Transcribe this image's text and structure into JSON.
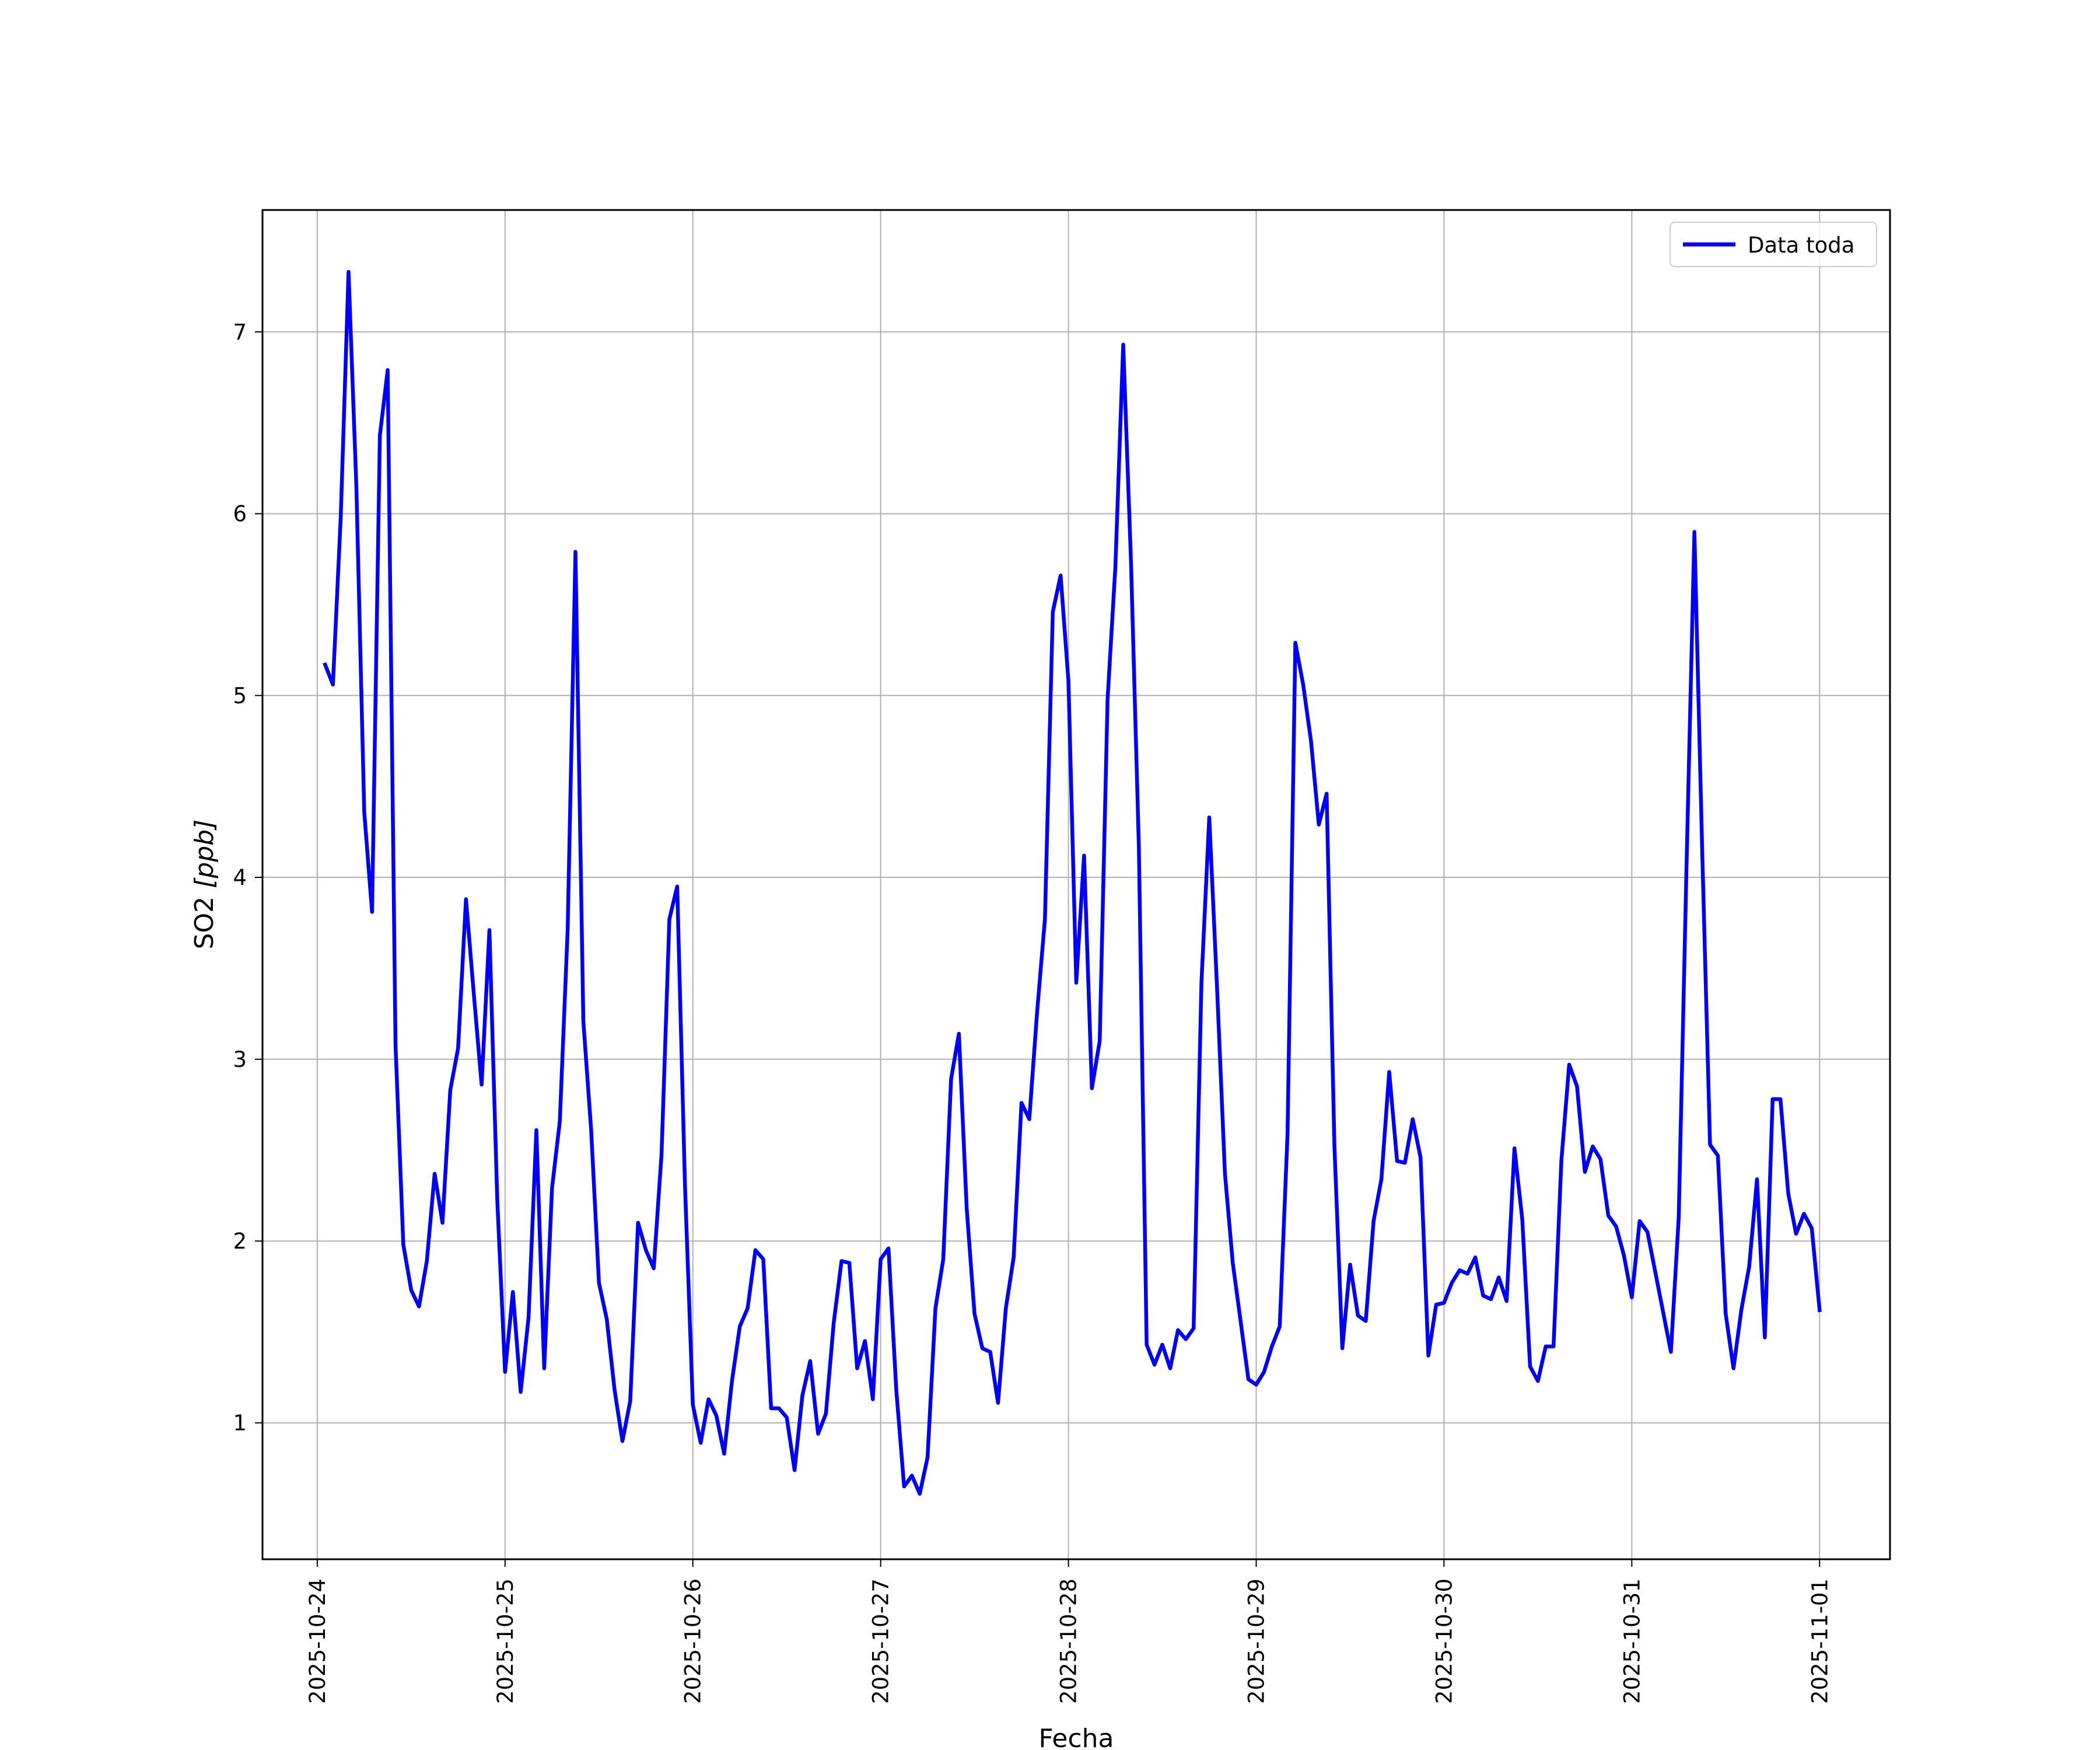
{
  "chart_data": {
    "type": "line",
    "xlabel": "Fecha",
    "ylabel_main": "SO2 ",
    "ylabel_unit": "[ppb]",
    "x_ticks": [
      "2025-10-24",
      "2025-10-25",
      "2025-10-26",
      "2025-10-27",
      "2025-10-28",
      "2025-10-29",
      "2025-10-30",
      "2025-10-31",
      "2025-11-01"
    ],
    "y_ticks": [
      1,
      2,
      3,
      4,
      5,
      6,
      7
    ],
    "xlim": [
      "2025-10-23T17:00",
      "2025-11-01T09:00"
    ],
    "ylim": [
      0.25,
      7.67
    ],
    "grid": true,
    "legend_position": "top-right",
    "series": [
      {
        "name": "Data toda",
        "color": "#0000ff",
        "points": [
          [
            "2025-10-24T01:00",
            5.17
          ],
          [
            "2025-10-24T02:00",
            5.06
          ],
          [
            "2025-10-24T03:00",
            5.98
          ],
          [
            "2025-10-24T04:00",
            7.33
          ],
          [
            "2025-10-24T05:00",
            6.14
          ],
          [
            "2025-10-24T06:00",
            4.36
          ],
          [
            "2025-10-24T07:00",
            3.81
          ],
          [
            "2025-10-24T08:00",
            6.43
          ],
          [
            "2025-10-24T09:00",
            6.79
          ],
          [
            "2025-10-24T10:00",
            3.08
          ],
          [
            "2025-10-24T11:00",
            1.98
          ],
          [
            "2025-10-24T12:00",
            1.73
          ],
          [
            "2025-10-24T13:00",
            1.64
          ],
          [
            "2025-10-24T14:00",
            1.89
          ],
          [
            "2025-10-24T15:00",
            2.37
          ],
          [
            "2025-10-24T16:00",
            2.1
          ],
          [
            "2025-10-24T17:00",
            2.83
          ],
          [
            "2025-10-24T18:00",
            3.06
          ],
          [
            "2025-10-24T19:00",
            3.88
          ],
          [
            "2025-10-24T20:00",
            3.36
          ],
          [
            "2025-10-24T21:00",
            2.86
          ],
          [
            "2025-10-24T22:00",
            3.71
          ],
          [
            "2025-10-24T23:00",
            2.23
          ],
          [
            "2025-10-25T00:00",
            1.28
          ],
          [
            "2025-10-25T01:00",
            1.72
          ],
          [
            "2025-10-25T02:00",
            1.17
          ],
          [
            "2025-10-25T03:00",
            1.58
          ],
          [
            "2025-10-25T04:00",
            2.61
          ],
          [
            "2025-10-25T05:00",
            1.3
          ],
          [
            "2025-10-25T06:00",
            2.29
          ],
          [
            "2025-10-25T07:00",
            2.66
          ],
          [
            "2025-10-25T08:00",
            3.71
          ],
          [
            "2025-10-25T09:00",
            5.79
          ],
          [
            "2025-10-25T10:00",
            3.21
          ],
          [
            "2025-10-25T11:00",
            2.61
          ],
          [
            "2025-10-25T12:00",
            1.77
          ],
          [
            "2025-10-25T13:00",
            1.57
          ],
          [
            "2025-10-25T14:00",
            1.18
          ],
          [
            "2025-10-25T15:00",
            0.9
          ],
          [
            "2025-10-25T16:00",
            1.12
          ],
          [
            "2025-10-25T17:00",
            2.1
          ],
          [
            "2025-10-25T18:00",
            1.95
          ],
          [
            "2025-10-25T19:00",
            1.85
          ],
          [
            "2025-10-25T20:00",
            2.48
          ],
          [
            "2025-10-25T21:00",
            3.77
          ],
          [
            "2025-10-25T22:00",
            3.95
          ],
          [
            "2025-10-25T23:00",
            2.3
          ],
          [
            "2025-10-26T00:00",
            1.1
          ],
          [
            "2025-10-26T01:00",
            0.89
          ],
          [
            "2025-10-26T02:00",
            1.13
          ],
          [
            "2025-10-26T03:00",
            1.04
          ],
          [
            "2025-10-26T04:00",
            0.83
          ],
          [
            "2025-10-26T05:00",
            1.23
          ],
          [
            "2025-10-26T06:00",
            1.53
          ],
          [
            "2025-10-26T07:00",
            1.63
          ],
          [
            "2025-10-26T08:00",
            1.95
          ],
          [
            "2025-10-26T09:00",
            1.9
          ],
          [
            "2025-10-26T10:00",
            1.08
          ],
          [
            "2025-10-26T11:00",
            1.08
          ],
          [
            "2025-10-26T12:00",
            1.03
          ],
          [
            "2025-10-26T13:00",
            0.74
          ],
          [
            "2025-10-26T14:00",
            1.15
          ],
          [
            "2025-10-26T15:00",
            1.34
          ],
          [
            "2025-10-26T16:00",
            0.94
          ],
          [
            "2025-10-26T17:00",
            1.05
          ],
          [
            "2025-10-26T18:00",
            1.55
          ],
          [
            "2025-10-26T19:00",
            1.89
          ],
          [
            "2025-10-26T20:00",
            1.88
          ],
          [
            "2025-10-26T21:00",
            1.3
          ],
          [
            "2025-10-26T22:00",
            1.45
          ],
          [
            "2025-10-26T23:00",
            1.13
          ],
          [
            "2025-10-27T00:00",
            1.9
          ],
          [
            "2025-10-27T01:00",
            1.96
          ],
          [
            "2025-10-27T02:00",
            1.18
          ],
          [
            "2025-10-27T03:00",
            0.65
          ],
          [
            "2025-10-27T04:00",
            0.71
          ],
          [
            "2025-10-27T05:00",
            0.61
          ],
          [
            "2025-10-27T06:00",
            0.81
          ],
          [
            "2025-10-27T07:00",
            1.63
          ],
          [
            "2025-10-27T08:00",
            1.9
          ],
          [
            "2025-10-27T09:00",
            2.89
          ],
          [
            "2025-10-27T10:00",
            3.14
          ],
          [
            "2025-10-27T11:00",
            2.18
          ],
          [
            "2025-10-27T12:00",
            1.6
          ],
          [
            "2025-10-27T13:00",
            1.41
          ],
          [
            "2025-10-27T14:00",
            1.39
          ],
          [
            "2025-10-27T15:00",
            1.11
          ],
          [
            "2025-10-27T16:00",
            1.63
          ],
          [
            "2025-10-27T17:00",
            1.91
          ],
          [
            "2025-10-27T18:00",
            2.76
          ],
          [
            "2025-10-27T19:00",
            2.67
          ],
          [
            "2025-10-27T20:00",
            3.26
          ],
          [
            "2025-10-27T21:00",
            3.77
          ],
          [
            "2025-10-27T22:00",
            5.46
          ],
          [
            "2025-10-27T23:00",
            5.66
          ],
          [
            "2025-10-28T00:00",
            5.08
          ],
          [
            "2025-10-28T01:00",
            3.42
          ],
          [
            "2025-10-28T02:00",
            4.12
          ],
          [
            "2025-10-28T03:00",
            2.84
          ],
          [
            "2025-10-28T04:00",
            3.1
          ],
          [
            "2025-10-28T05:00",
            4.98
          ],
          [
            "2025-10-28T06:00",
            5.71
          ],
          [
            "2025-10-28T07:00",
            6.93
          ],
          [
            "2025-10-28T08:00",
            5.73
          ],
          [
            "2025-10-28T09:00",
            4.17
          ],
          [
            "2025-10-28T10:00",
            1.43
          ],
          [
            "2025-10-28T11:00",
            1.32
          ],
          [
            "2025-10-28T12:00",
            1.43
          ],
          [
            "2025-10-28T13:00",
            1.3
          ],
          [
            "2025-10-28T14:00",
            1.51
          ],
          [
            "2025-10-28T15:00",
            1.46
          ],
          [
            "2025-10-28T16:00",
            1.52
          ],
          [
            "2025-10-28T17:00",
            3.42
          ],
          [
            "2025-10-28T18:00",
            4.33
          ],
          [
            "2025-10-28T19:00",
            3.39
          ],
          [
            "2025-10-28T20:00",
            2.37
          ],
          [
            "2025-10-28T21:00",
            1.88
          ],
          [
            "2025-10-28T22:00",
            1.56
          ],
          [
            "2025-10-28T23:00",
            1.24
          ],
          [
            "2025-10-29T00:00",
            1.21
          ],
          [
            "2025-10-29T01:00",
            1.28
          ],
          [
            "2025-10-29T02:00",
            1.42
          ],
          [
            "2025-10-29T03:00",
            1.53
          ],
          [
            "2025-10-29T04:00",
            2.59
          ],
          [
            "2025-10-29T05:00",
            5.29
          ],
          [
            "2025-10-29T06:00",
            5.06
          ],
          [
            "2025-10-29T07:00",
            4.75
          ],
          [
            "2025-10-29T08:00",
            4.29
          ],
          [
            "2025-10-29T09:00",
            4.46
          ],
          [
            "2025-10-29T10:00",
            2.52
          ],
          [
            "2025-10-29T11:00",
            1.41
          ],
          [
            "2025-10-29T12:00",
            1.87
          ],
          [
            "2025-10-29T13:00",
            1.59
          ],
          [
            "2025-10-29T14:00",
            1.56
          ],
          [
            "2025-10-29T15:00",
            2.11
          ],
          [
            "2025-10-29T16:00",
            2.34
          ],
          [
            "2025-10-29T17:00",
            2.93
          ],
          [
            "2025-10-29T18:00",
            2.44
          ],
          [
            "2025-10-29T19:00",
            2.43
          ],
          [
            "2025-10-29T20:00",
            2.67
          ],
          [
            "2025-10-29T21:00",
            2.46
          ],
          [
            "2025-10-29T22:00",
            1.37
          ],
          [
            "2025-10-29T23:00",
            1.65
          ],
          [
            "2025-10-30T00:00",
            1.66
          ],
          [
            "2025-10-30T01:00",
            1.77
          ],
          [
            "2025-10-30T02:00",
            1.84
          ],
          [
            "2025-10-30T03:00",
            1.82
          ],
          [
            "2025-10-30T04:00",
            1.91
          ],
          [
            "2025-10-30T05:00",
            1.7
          ],
          [
            "2025-10-30T06:00",
            1.68
          ],
          [
            "2025-10-30T07:00",
            1.8
          ],
          [
            "2025-10-30T08:00",
            1.67
          ],
          [
            "2025-10-30T09:00",
            2.51
          ],
          [
            "2025-10-30T10:00",
            2.12
          ],
          [
            "2025-10-30T11:00",
            1.31
          ],
          [
            "2025-10-30T12:00",
            1.23
          ],
          [
            "2025-10-30T13:00",
            1.42
          ],
          [
            "2025-10-30T14:00",
            1.42
          ],
          [
            "2025-10-30T15:00",
            2.44
          ],
          [
            "2025-10-30T16:00",
            2.97
          ],
          [
            "2025-10-30T17:00",
            2.85
          ],
          [
            "2025-10-30T18:00",
            2.38
          ],
          [
            "2025-10-30T19:00",
            2.52
          ],
          [
            "2025-10-30T20:00",
            2.45
          ],
          [
            "2025-10-30T21:00",
            2.14
          ],
          [
            "2025-10-30T22:00",
            2.08
          ],
          [
            "2025-10-30T23:00",
            1.92
          ],
          [
            "2025-10-31T00:00",
            1.69
          ],
          [
            "2025-10-31T01:00",
            2.11
          ],
          [
            "2025-10-31T02:00",
            2.05
          ],
          [
            "2025-10-31T05:00",
            1.39
          ],
          [
            "2025-10-31T06:00",
            2.13
          ],
          [
            "2025-10-31T07:00",
            4.08
          ],
          [
            "2025-10-31T08:00",
            5.9
          ],
          [
            "2025-10-31T09:00",
            4.14
          ],
          [
            "2025-10-31T10:00",
            2.53
          ],
          [
            "2025-10-31T11:00",
            2.47
          ],
          [
            "2025-10-31T12:00",
            1.6
          ],
          [
            "2025-10-31T13:00",
            1.3
          ],
          [
            "2025-10-31T14:00",
            1.62
          ],
          [
            "2025-10-31T15:00",
            1.86
          ],
          [
            "2025-10-31T16:00",
            2.34
          ],
          [
            "2025-10-31T17:00",
            1.47
          ],
          [
            "2025-10-31T18:00",
            2.78
          ],
          [
            "2025-10-31T19:00",
            2.78
          ],
          [
            "2025-10-31T20:00",
            2.26
          ],
          [
            "2025-10-31T21:00",
            2.04
          ],
          [
            "2025-10-31T22:00",
            2.15
          ],
          [
            "2025-10-31T23:00",
            2.07
          ],
          [
            "2025-11-01T00:00",
            1.62
          ]
        ]
      }
    ]
  }
}
